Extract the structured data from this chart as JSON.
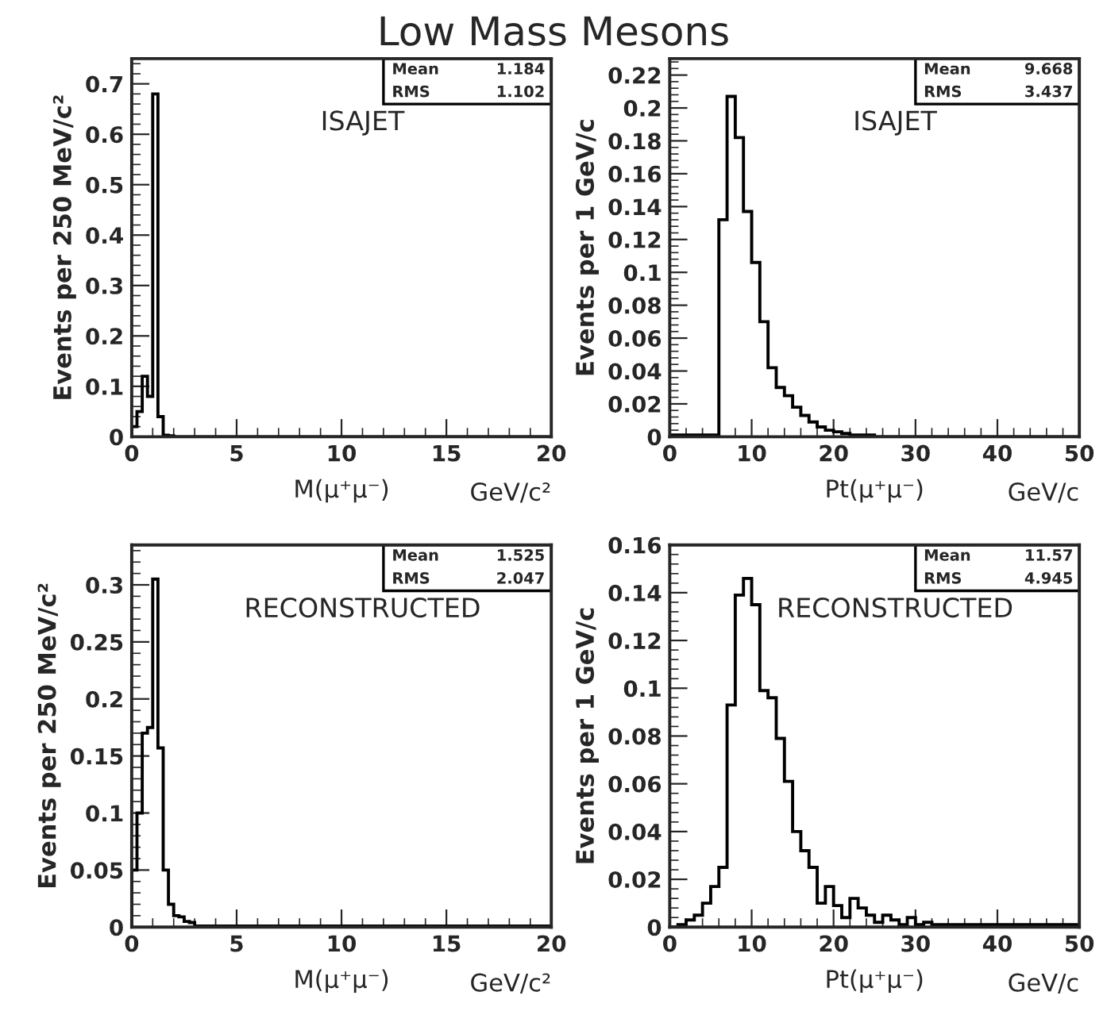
{
  "chart_data": [
    {
      "type": "histogram",
      "title": "Low Mass Mesons",
      "xlabel": "M(μ⁺μ⁻)",
      "ylabel": "Events per 250 MeV/c²",
      "annotations": [
        "ISAJET",
        "Mean",
        "1.184",
        "RMS",
        "1.102",
        "GeV/c²"
      ],
      "bins": [
        0,
        0.25,
        0.5,
        0.75,
        1.0,
        1.25,
        1.5,
        1.75,
        2.0,
        20
      ],
      "series": [
        {
          "color": "#000000",
          "values": [
            0.02,
            0.05,
            0.12,
            0.08,
            0.68,
            0.04,
            0.003,
            0.002,
            0
          ]
        }
      ],
      "xlim": [
        0,
        20
      ],
      "xticks": [
        0,
        5,
        10,
        15,
        20
      ],
      "ylim": [
        0,
        0.75
      ],
      "yticks": [
        0,
        0.1,
        0.2,
        0.3,
        0.4,
        0.5,
        0.6,
        0.7
      ]
    },
    {
      "type": "histogram",
      "xlabel": "Pt(μ⁺μ⁻)",
      "ylabel": "Events per 1 GeV/c",
      "annotations": [
        "ISAJET",
        "Mean",
        "9.668",
        "RMS",
        "3.437",
        "GeV/c"
      ],
      "bins": [
        0,
        6,
        7,
        8,
        9,
        10,
        11,
        12,
        13,
        14,
        15,
        16,
        17,
        18,
        19,
        20,
        21,
        22,
        25,
        50
      ],
      "series": [
        {
          "color": "#000000",
          "values": [
            0.001,
            0.132,
            0.207,
            0.182,
            0.137,
            0.106,
            0.07,
            0.042,
            0.03,
            0.025,
            0.018,
            0.013,
            0.009,
            0.006,
            0.004,
            0.003,
            0.002,
            0.001,
            0
          ]
        }
      ],
      "xlim": [
        0,
        50
      ],
      "xticks": [
        0,
        10,
        20,
        30,
        40,
        50
      ],
      "ylim": [
        0,
        0.23
      ],
      "yticks": [
        0,
        0.02,
        0.04,
        0.06,
        0.08,
        0.1,
        0.12,
        0.14,
        0.16,
        0.18,
        0.2,
        0.22
      ]
    },
    {
      "type": "histogram",
      "xlabel": "M(μ⁺μ⁻)",
      "ylabel": "Events per 250 MeV/c²",
      "annotations": [
        "RECONSTRUCTED",
        "Mean",
        "1.525",
        "RMS",
        "2.047",
        "GeV/c²"
      ],
      "bins": [
        0,
        0.25,
        0.5,
        0.75,
        1.0,
        1.25,
        1.5,
        1.75,
        2.0,
        2.25,
        2.5,
        2.75,
        3.0,
        20
      ],
      "series": [
        {
          "color": "#000000",
          "values": [
            0.05,
            0.1,
            0.17,
            0.175,
            0.305,
            0.157,
            0.05,
            0.02,
            0.01,
            0.009,
            0.005,
            0.004,
            0.001
          ]
        }
      ],
      "xlim": [
        0,
        20
      ],
      "xticks": [
        0,
        5,
        10,
        15,
        20
      ],
      "ylim": [
        0,
        0.335
      ],
      "yticks": [
        0,
        0.05,
        0.1,
        0.15,
        0.2,
        0.25,
        0.3
      ]
    },
    {
      "type": "histogram",
      "xlabel": "Pt(μ⁺μ⁻)",
      "ylabel": "Events per 1 GeV/c",
      "annotations": [
        "RECONSTRUCTED",
        "Mean",
        "11.57",
        "RMS",
        "4.945",
        "GeV/c"
      ],
      "bins": [
        0,
        1,
        2,
        3,
        4,
        5,
        6,
        7,
        8,
        9,
        10,
        11,
        12,
        13,
        14,
        15,
        16,
        17,
        18,
        19,
        20,
        21,
        22,
        23,
        24,
        25,
        26,
        27,
        28,
        29,
        30,
        31,
        32,
        50
      ],
      "series": [
        {
          "color": "#000000",
          "values": [
            0,
            0.001,
            0.003,
            0.005,
            0.01,
            0.017,
            0.025,
            0.093,
            0.139,
            0.146,
            0.135,
            0.099,
            0.096,
            0.079,
            0.061,
            0.04,
            0.032,
            0.025,
            0.01,
            0.017,
            0.009,
            0.004,
            0.012,
            0.008,
            0.005,
            0.002,
            0.005,
            0.003,
            0.001,
            0.004,
            0.001,
            0.002,
            0.001
          ]
        }
      ],
      "xlim": [
        0,
        50
      ],
      "xticks": [
        0,
        10,
        20,
        30,
        40,
        50
      ],
      "ylim": [
        0,
        0.16
      ],
      "yticks": [
        0,
        0.02,
        0.04,
        0.06,
        0.08,
        0.1,
        0.12,
        0.14,
        0.16
      ]
    }
  ]
}
